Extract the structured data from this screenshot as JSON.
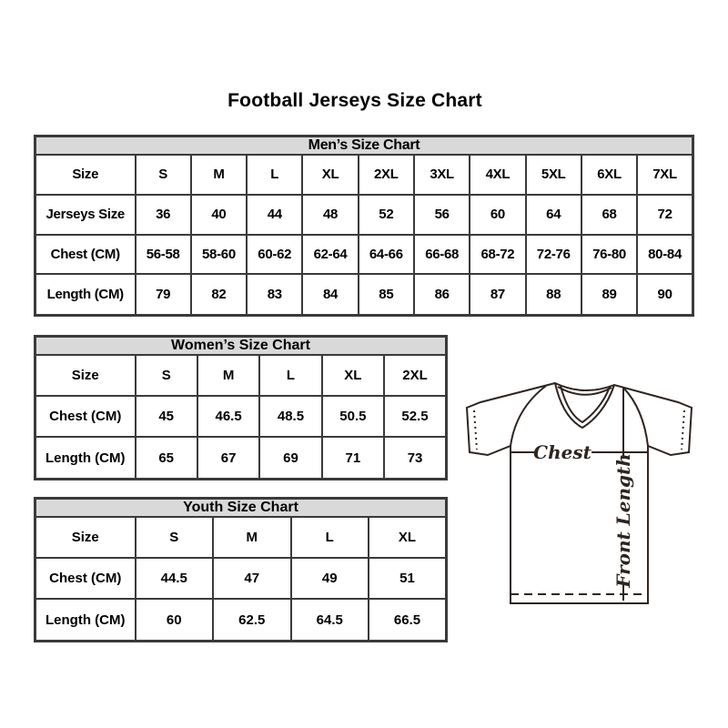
{
  "page": {
    "title": "Football Jerseys Size Chart"
  },
  "colors": {
    "table_header_bg": "#d9d9d9",
    "table_border": "#3a3a3a",
    "text": "#000000",
    "diagram_stroke": "#2e2520"
  },
  "chart_data": [
    {
      "type": "table",
      "name": "men",
      "title": "Men’s Size Chart",
      "rows": [
        [
          "Size",
          "S",
          "M",
          "L",
          "XL",
          "2XL",
          "3XL",
          "4XL",
          "5XL",
          "6XL",
          "7XL"
        ],
        [
          "Jerseys Size",
          "36",
          "40",
          "44",
          "48",
          "52",
          "56",
          "60",
          "64",
          "68",
          "72"
        ],
        [
          "Chest (CM)",
          "56-58",
          "58-60",
          "60-62",
          "62-64",
          "64-66",
          "66-68",
          "68-72",
          "72-76",
          "76-80",
          "80-84"
        ],
        [
          "Length (CM)",
          "79",
          "82",
          "83",
          "84",
          "85",
          "86",
          "87",
          "88",
          "89",
          "90"
        ]
      ]
    },
    {
      "type": "table",
      "name": "women",
      "title": "Women’s Size Chart",
      "rows": [
        [
          "Size",
          "S",
          "M",
          "L",
          "XL",
          "2XL"
        ],
        [
          "Chest (CM)",
          "45",
          "46.5",
          "48.5",
          "50.5",
          "52.5"
        ],
        [
          "Length (CM)",
          "65",
          "67",
          "69",
          "71",
          "73"
        ]
      ]
    },
    {
      "type": "table",
      "name": "youth",
      "title": "Youth Size Chart",
      "rows": [
        [
          "Size",
          "S",
          "M",
          "L",
          "XL"
        ],
        [
          "Chest (CM)",
          "44.5",
          "47",
          "49",
          "51"
        ],
        [
          "Length (CM)",
          "60",
          "62.5",
          "64.5",
          "66.5"
        ]
      ]
    }
  ],
  "diagram": {
    "chest_label": "Chest",
    "front_length_label": "Front Length"
  }
}
